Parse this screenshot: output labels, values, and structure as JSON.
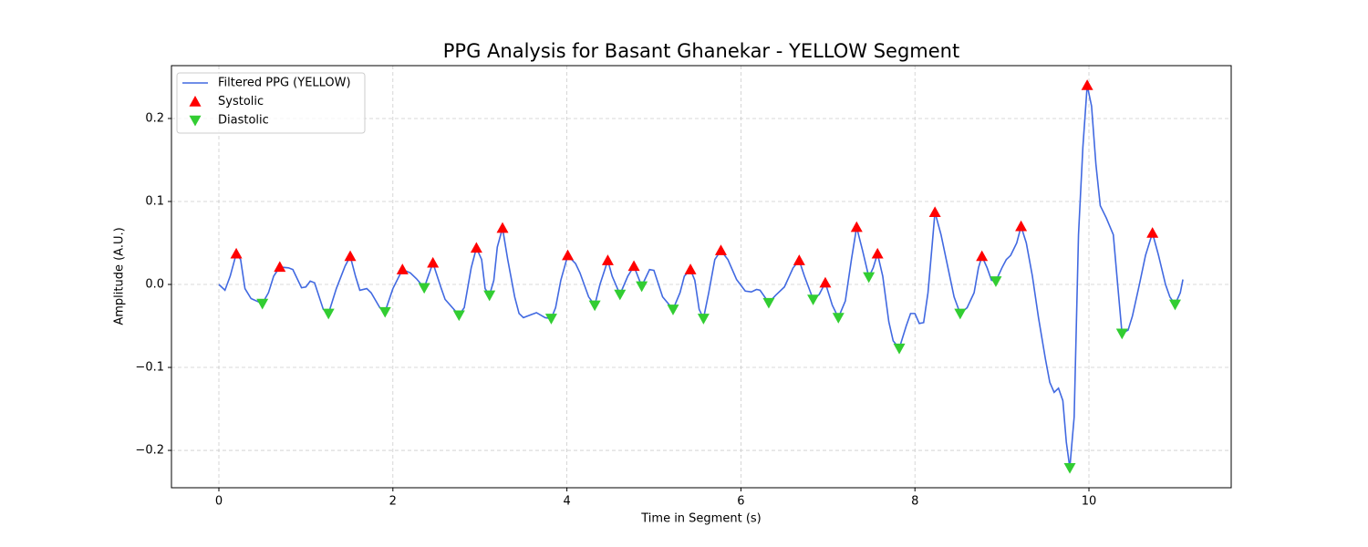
{
  "chart_data": {
    "type": "line",
    "title": "PPG Analysis for Basant Ghanekar - YELLOW Segment",
    "x_label": "Time in Segment (s)",
    "y_label": "Amplitude (A.U.)",
    "xlim": [
      -0.545,
      11.635
    ],
    "ylim": [
      -0.245,
      0.2637
    ],
    "xticks": [
      0,
      2,
      4,
      6,
      8,
      10
    ],
    "yticks": [
      {
        "value": -0.2,
        "label": "−0.2"
      },
      {
        "value": -0.1,
        "label": "−0.1"
      },
      {
        "value": 0,
        "label": "0.0"
      },
      0.1,
      0.2
    ],
    "grid": true,
    "legend": "upper left",
    "series": [
      {
        "name": "Filtered PPG (YELLOW)",
        "color": "#4169e1",
        "marker": "line",
        "x": [
          0,
          0.07,
          0.13,
          0.2,
          0.25,
          0.3,
          0.37,
          0.5,
          0.57,
          0.63,
          0.7,
          0.8,
          0.85,
          0.95,
          1.0,
          1.05,
          1.1,
          1.2,
          1.26,
          1.35,
          1.45,
          1.51,
          1.57,
          1.62,
          1.7,
          1.75,
          1.85,
          1.91,
          2.0,
          2.11,
          2.2,
          2.27,
          2.36,
          2.46,
          2.55,
          2.6,
          2.76,
          2.82,
          2.9,
          2.96,
          3.02,
          3.06,
          3.11,
          3.16,
          3.2,
          3.26,
          3.32,
          3.4,
          3.45,
          3.5,
          3.6,
          3.65,
          3.75,
          3.82,
          3.87,
          3.93,
          4.01,
          4.1,
          4.15,
          4.25,
          4.32,
          4.38,
          4.47,
          4.52,
          4.61,
          4.7,
          4.77,
          4.86,
          4.95,
          5.0,
          5.1,
          5.22,
          5.3,
          5.35,
          5.42,
          5.47,
          5.52,
          5.57,
          5.63,
          5.7,
          5.77,
          5.85,
          5.95,
          6.05,
          6.12,
          6.18,
          6.22,
          6.32,
          6.4,
          6.5,
          6.6,
          6.67,
          6.73,
          6.83,
          6.9,
          6.97,
          7.05,
          7.12,
          7.2,
          7.27,
          7.33,
          7.4,
          7.47,
          7.52,
          7.57,
          7.63,
          7.7,
          7.75,
          7.82,
          7.9,
          7.95,
          8.0,
          8.05,
          8.1,
          8.15,
          8.2,
          8.23,
          8.3,
          8.4,
          8.45,
          8.52,
          8.6,
          8.68,
          8.73,
          8.77,
          8.83,
          8.88,
          8.93,
          9.0,
          9.05,
          9.1,
          9.17,
          9.22,
          9.28,
          9.35,
          9.42,
          9.5,
          9.55,
          9.6,
          9.65,
          9.7,
          9.74,
          9.78,
          9.83,
          9.88,
          9.93,
          9.98,
          10.03,
          10.08,
          10.13,
          10.2,
          10.28,
          10.33,
          10.38,
          10.45,
          10.5,
          10.58,
          10.65,
          10.73,
          10.8,
          10.88,
          10.93,
          10.99,
          11.05,
          11.08
        ],
        "values": [
          0,
          -0.007,
          0.01,
          0.037,
          0.03,
          -0.005,
          -0.017,
          -0.023,
          -0.01,
          0.01,
          0.021,
          0.02,
          0.018,
          -0.004,
          -0.003,
          0.004,
          0.002,
          -0.03,
          -0.035,
          -0.005,
          0.022,
          0.034,
          0.01,
          -0.007,
          -0.005,
          -0.01,
          -0.028,
          -0.033,
          -0.005,
          0.018,
          0.014,
          0.007,
          -0.004,
          0.026,
          -0.003,
          -0.018,
          -0.037,
          -0.028,
          0.02,
          0.044,
          0.03,
          -0.005,
          -0.013,
          0.005,
          0.045,
          0.068,
          0.03,
          -0.015,
          -0.035,
          -0.04,
          -0.036,
          -0.034,
          -0.04,
          -0.041,
          -0.028,
          0.005,
          0.035,
          0.025,
          0.014,
          -0.015,
          -0.025,
          0,
          0.029,
          0.01,
          -0.012,
          0.01,
          0.022,
          -0.002,
          0.018,
          0.017,
          -0.015,
          -0.03,
          -0.01,
          0.01,
          0.018,
          0.005,
          -0.03,
          -0.041,
          -0.01,
          0.03,
          0.041,
          0.03,
          0.006,
          -0.008,
          -0.009,
          -0.006,
          -0.007,
          -0.022,
          -0.013,
          -0.003,
          0.02,
          0.029,
          0.01,
          -0.018,
          -0.012,
          0.002,
          -0.025,
          -0.04,
          -0.02,
          0.03,
          0.069,
          0.04,
          0.009,
          0.02,
          0.037,
          0.01,
          -0.045,
          -0.068,
          -0.077,
          -0.05,
          -0.035,
          -0.035,
          -0.047,
          -0.046,
          -0.01,
          0.05,
          0.087,
          0.06,
          0.01,
          -0.015,
          -0.035,
          -0.028,
          -0.01,
          0.02,
          0.034,
          0.02,
          0.005,
          0.004,
          0.02,
          0.03,
          0.035,
          0.05,
          0.07,
          0.05,
          0.01,
          -0.04,
          -0.09,
          -0.118,
          -0.13,
          -0.125,
          -0.14,
          -0.19,
          -0.221,
          -0.16,
          0.06,
          0.165,
          0.24,
          0.215,
          0.145,
          0.095,
          0.08,
          0.06,
          0,
          -0.059,
          -0.055,
          -0.038,
          0,
          0.035,
          0.062,
          0.035,
          0,
          -0.015,
          -0.024,
          -0.01,
          0.006
        ]
      },
      {
        "name": "Systolic",
        "color": "#ff0000",
        "marker": "triangle-up",
        "x": [
          0.2,
          0.7,
          1.51,
          2.11,
          2.46,
          2.96,
          3.26,
          4.01,
          4.47,
          4.77,
          5.42,
          5.77,
          6.67,
          6.97,
          7.33,
          7.57,
          8.23,
          8.77,
          9.22,
          9.98,
          10.73
        ],
        "values": [
          0.037,
          0.021,
          0.034,
          0.018,
          0.026,
          0.044,
          0.068,
          0.035,
          0.029,
          0.022,
          0.018,
          0.041,
          0.029,
          0.002,
          0.069,
          0.037,
          0.087,
          0.034,
          0.07,
          0.24,
          0.062
        ]
      },
      {
        "name": "Diastolic",
        "color": "#32cd32",
        "marker": "triangle-down",
        "x": [
          0.5,
          1.26,
          1.91,
          2.36,
          2.76,
          3.11,
          3.82,
          4.32,
          4.61,
          4.86,
          5.22,
          5.57,
          6.32,
          6.83,
          7.12,
          7.47,
          7.82,
          8.52,
          8.93,
          9.78,
          10.38,
          10.99
        ],
        "values": [
          -0.023,
          -0.035,
          -0.033,
          -0.004,
          -0.037,
          -0.013,
          -0.041,
          -0.025,
          -0.012,
          -0.002,
          -0.03,
          -0.041,
          -0.022,
          -0.018,
          -0.04,
          0.009,
          -0.077,
          -0.035,
          0.004,
          -0.221,
          -0.059,
          -0.024
        ]
      }
    ]
  }
}
